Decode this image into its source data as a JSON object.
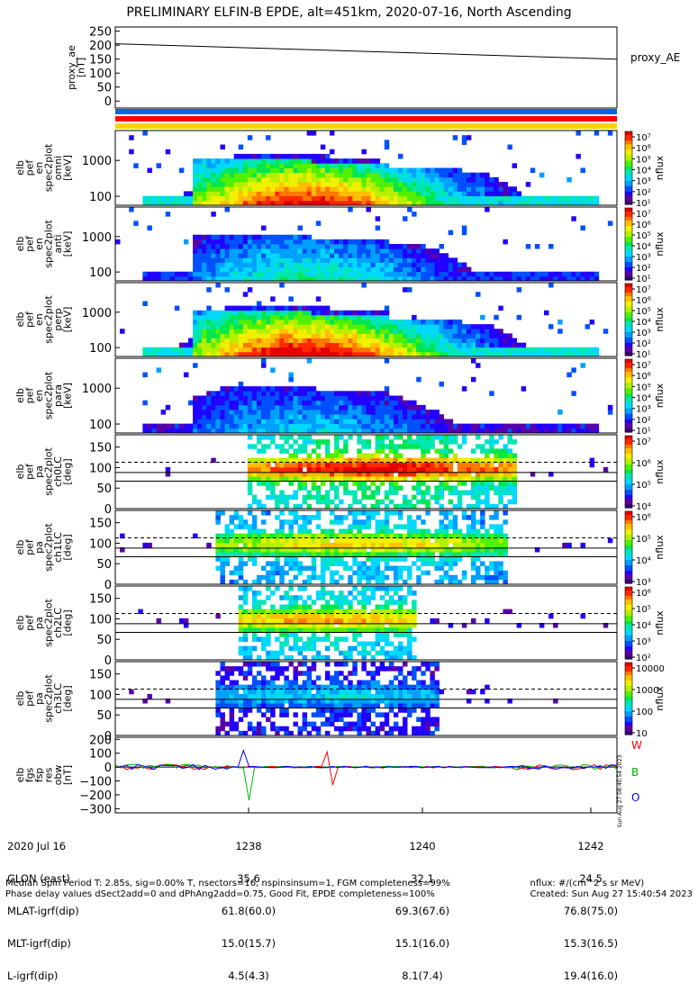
{
  "title": "PRELIMINARY ELFIN-B EPDE, alt=451km, 2020-07-16, North Ascending",
  "colors": {
    "bar_blue": "#0a64e6",
    "bar_red": "#ff0000",
    "bar_yellow": "#ffd400",
    "trace_W": "#ff0000",
    "trace_B": "#00b400",
    "trace_O": "#0000ff"
  },
  "chart_data": [
    {
      "id": "proxy_ae",
      "type": "line",
      "ylabel": "proxy_ae [nT]",
      "legend": "proxy_AE",
      "ylim": [
        -25,
        265
      ],
      "yticks": [
        "250",
        "200",
        "150",
        "100",
        "50",
        "0"
      ],
      "series": [
        {
          "name": "proxy_AE",
          "x_min": [
            1236.8,
            1242.7
          ],
          "values": [
            205,
            150
          ]
        }
      ]
    },
    {
      "id": "color_bars",
      "type": "area",
      "bars": [
        "blue",
        "red",
        "yellow"
      ]
    },
    {
      "id": "pef_en_omni",
      "type": "heatmap",
      "ylabel": "elb pef en spec2plot omni [keV]",
      "yscale": "log",
      "yticks": [
        "1000",
        "100"
      ],
      "colorbar": {
        "label": "nflux",
        "ticks": [
          "10⁷",
          "10⁶",
          "10⁵",
          "10⁴",
          "10³",
          "10²",
          "10¹"
        ]
      }
    },
    {
      "id": "pef_en_anti",
      "type": "heatmap",
      "ylabel": "elb pef en spec2plot anti [keV]",
      "yscale": "log",
      "yticks": [
        "1000",
        "100"
      ],
      "colorbar": {
        "label": "nflux",
        "ticks": [
          "10⁷",
          "10⁶",
          "10⁵",
          "10⁴",
          "10³",
          "10²",
          "10¹"
        ]
      }
    },
    {
      "id": "pef_en_perp",
      "type": "heatmap",
      "ylabel": "elb pef en spec2plot perp [keV]",
      "yscale": "log",
      "yticks": [
        "1000",
        "100"
      ],
      "colorbar": {
        "label": "nflux",
        "ticks": [
          "10⁷",
          "10⁶",
          "10⁵",
          "10⁴",
          "10³",
          "10²",
          "10¹"
        ]
      }
    },
    {
      "id": "pef_en_para",
      "type": "heatmap",
      "ylabel": "elb pef en spec2plot para [keV]",
      "yscale": "log",
      "yticks": [
        "1000",
        "100"
      ],
      "colorbar": {
        "label": "nflux",
        "ticks": [
          "10⁷",
          "10⁶",
          "10⁵",
          "10⁴",
          "10³",
          "10²",
          "10¹"
        ]
      }
    },
    {
      "id": "pef_pa_ch0LC",
      "type": "heatmap",
      "ylabel": "elb pef pa spec2plot ch0LC [deg]",
      "ylim": [
        0,
        180
      ],
      "yticks": [
        "150",
        "100",
        "50",
        "0"
      ],
      "colorbar": {
        "label": "nflux",
        "ticks": [
          "10⁷",
          "10⁶",
          "10⁵",
          "10⁴"
        ]
      }
    },
    {
      "id": "pef_pa_ch1LC",
      "type": "heatmap",
      "ylabel": "elb pef pa spec2plot ch1LC [deg]",
      "ylim": [
        0,
        180
      ],
      "yticks": [
        "150",
        "100",
        "50",
        "0"
      ],
      "colorbar": {
        "label": "nflux",
        "ticks": [
          "10⁶",
          "10⁵",
          "10⁴",
          "10³"
        ]
      }
    },
    {
      "id": "pef_pa_ch2LC",
      "type": "heatmap",
      "ylabel": "elb pef pa spec2plot ch2LC [deg]",
      "ylim": [
        0,
        180
      ],
      "yticks": [
        "150",
        "100",
        "50",
        "0"
      ],
      "colorbar": {
        "label": "nflux",
        "ticks": [
          "10⁶",
          "10⁵",
          "10⁴",
          "10³",
          "10²"
        ]
      }
    },
    {
      "id": "pef_pa_ch3LC",
      "type": "heatmap",
      "ylabel": "elb pef pa spec2plot ch3LC [deg]",
      "ylim": [
        0,
        180
      ],
      "yticks": [
        "150",
        "100",
        "50",
        "0"
      ],
      "colorbar": {
        "label": "nflux",
        "ticks": [
          "10000",
          "1000",
          "100",
          "10"
        ]
      }
    },
    {
      "id": "fgs_res_dbw",
      "type": "line",
      "ylabel": "elb fgs fsp res obw [nT]",
      "ylim": [
        -330,
        215
      ],
      "yticks": [
        "200",
        "100",
        "0",
        "−100",
        "−200",
        "−300"
      ],
      "legend": [
        "W",
        "B",
        "O"
      ],
      "timestamp": "Sun Aug 27 08:40:54 2023"
    }
  ],
  "axis": {
    "row_labels": [
      "2020 Jul 16",
      "GLON (east)",
      "MLAT-igrf(dip)",
      "MLT-igrf(dip)",
      "L-igrf(dip)"
    ],
    "columns": [
      {
        "time": "1238",
        "values": [
          "35.6",
          "61.8(60.0)",
          "15.0(15.7)",
          "4.5(4.3)"
        ]
      },
      {
        "time": "1240",
        "values": [
          "32.1",
          "69.3(67.6)",
          "15.1(16.0)",
          "8.1(7.4)"
        ]
      },
      {
        "time": "1242",
        "values": [
          "24.5",
          "76.8(75.0)",
          "15.3(16.5)",
          "19.4(16.0)"
        ]
      }
    ]
  },
  "footer": {
    "left_1": "Median Spin Period T: 2.85s, sig=0.00% T, nsectors=16, nspinsinsum=1, FGM completeness=99%",
    "left_2": "Phase delay values dSect2add=0 and dPhAng2add=0.75, Good Fit, EPDE completeness=100%",
    "right_1": "nflux: #/(cm^2 s sr MeV)",
    "right_2": "Created: Sun Aug 27 15:40:54 2023"
  }
}
